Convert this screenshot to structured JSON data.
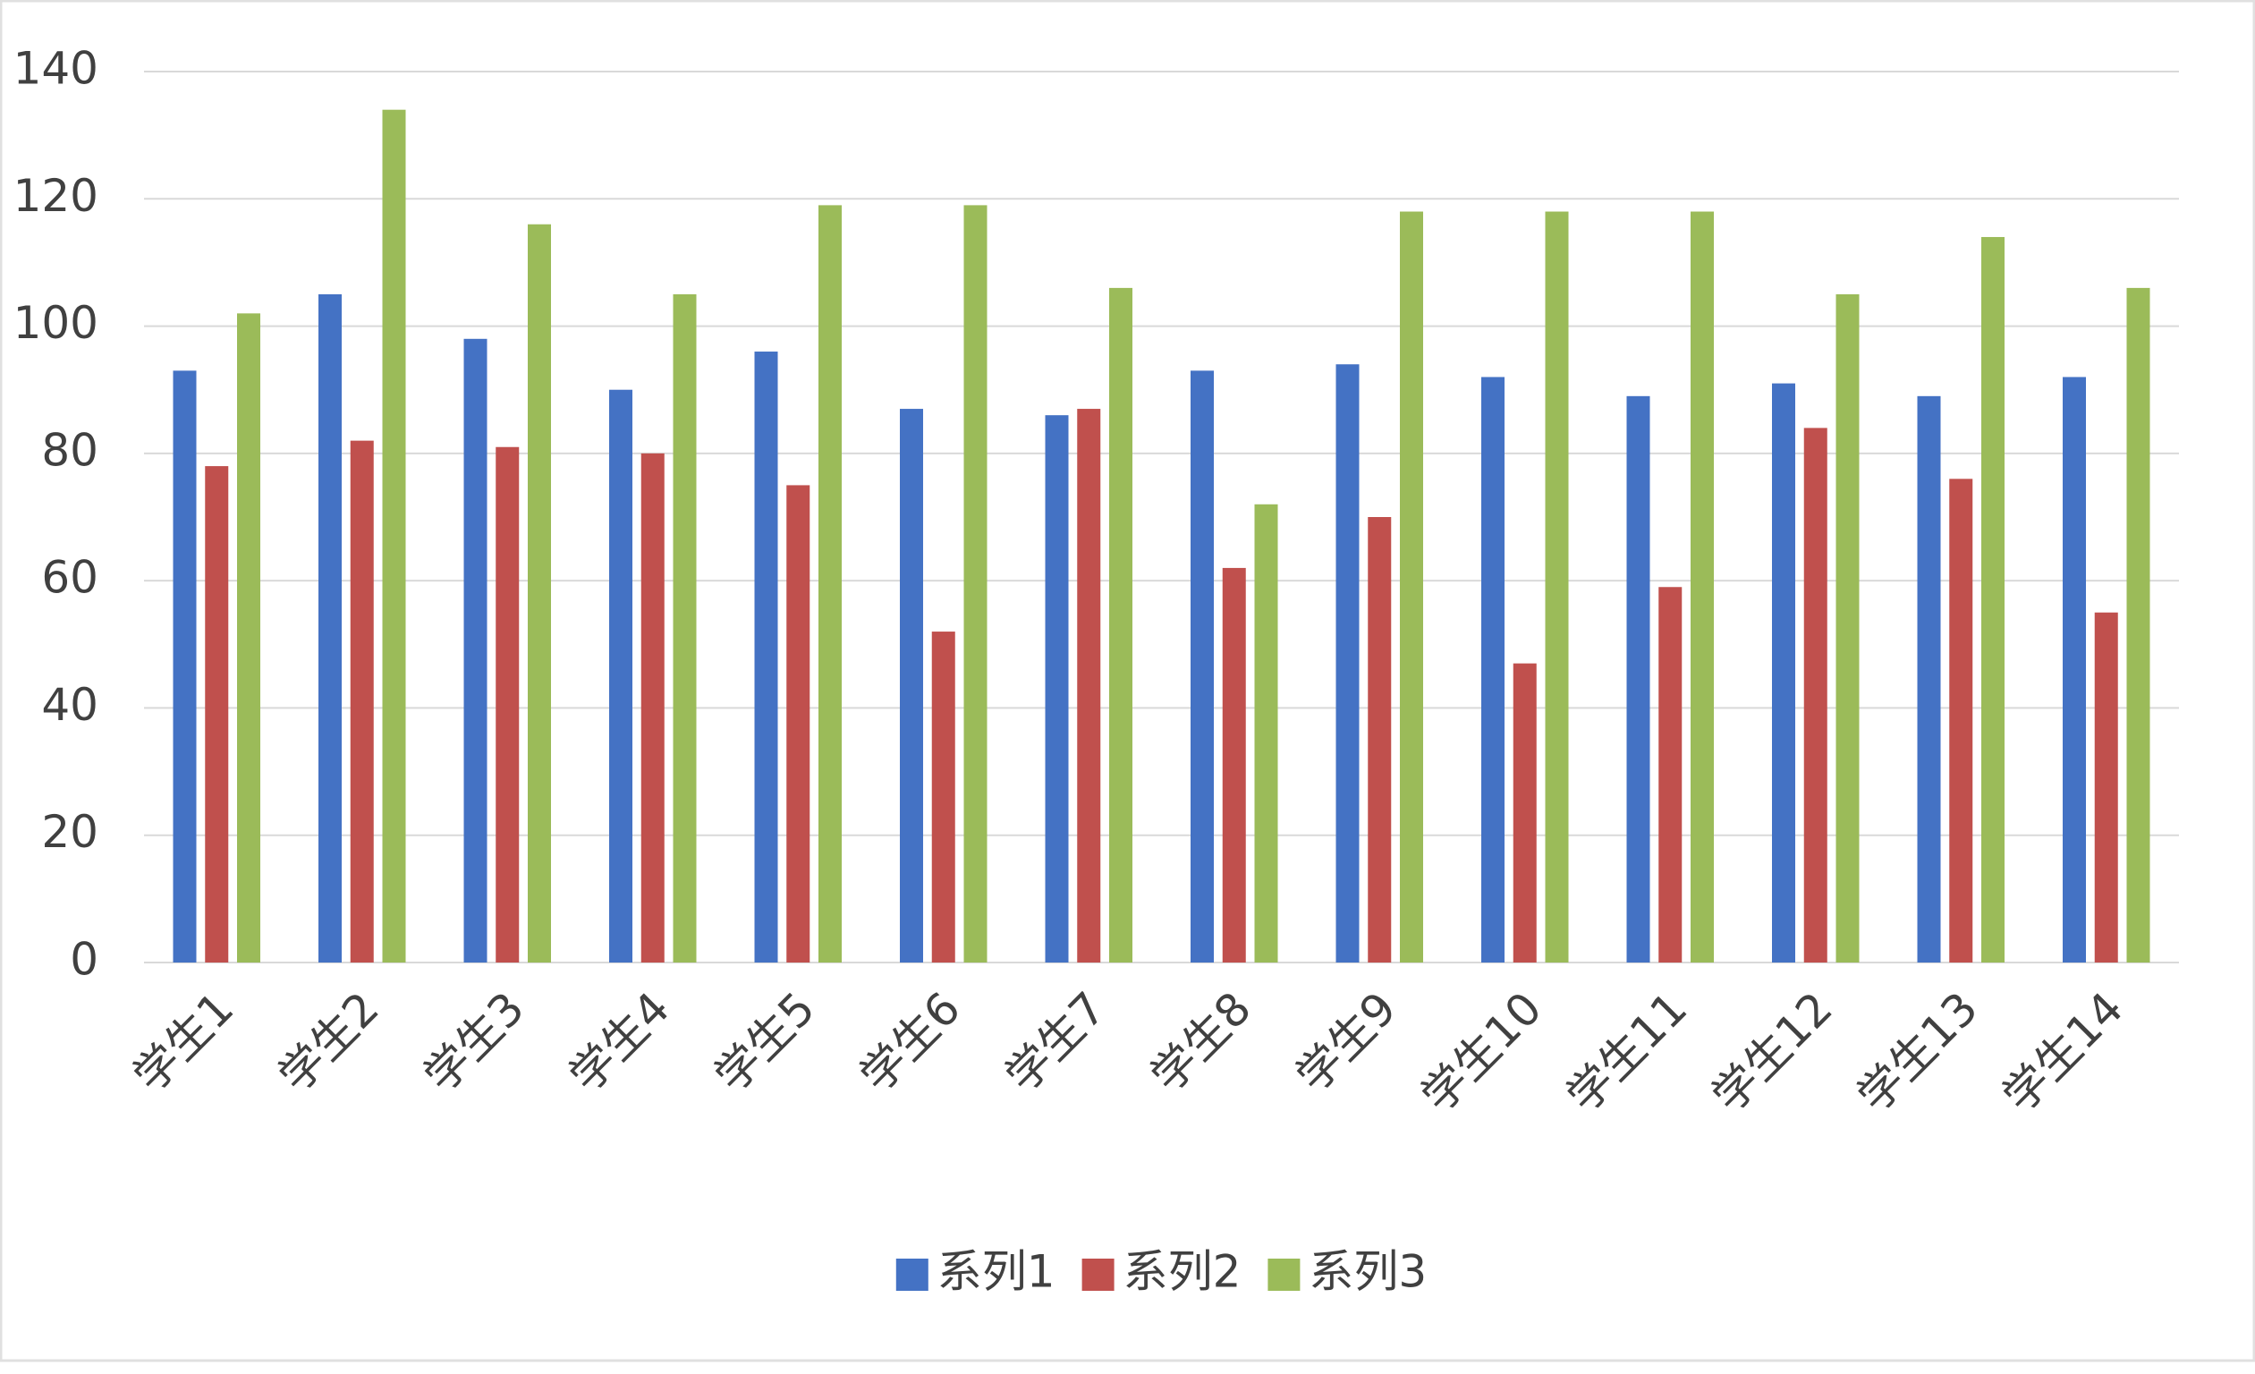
{
  "chart_data": {
    "type": "bar",
    "categories": [
      "学生1",
      "学生2",
      "学生3",
      "学生4",
      "学生5",
      "学生6",
      "学生7",
      "学生8",
      "学生9",
      "学生10",
      "学生11",
      "学生12",
      "学生13",
      "学生14"
    ],
    "series": [
      {
        "name": "系列1",
        "color": "#4472c4",
        "values": [
          93,
          105,
          98,
          90,
          96,
          87,
          86,
          93,
          94,
          92,
          89,
          91,
          89,
          92
        ]
      },
      {
        "name": "系列2",
        "color": "#c0504d",
        "values": [
          78,
          82,
          81,
          80,
          75,
          52,
          87,
          62,
          70,
          47,
          59,
          84,
          76,
          55
        ]
      },
      {
        "name": "系列3",
        "color": "#9bbb59",
        "values": [
          102,
          134,
          116,
          105,
          119,
          119,
          106,
          72,
          118,
          118,
          118,
          105,
          114,
          106
        ]
      }
    ],
    "ylim": [
      0,
      140
    ],
    "yticks": [
      0,
      20,
      40,
      60,
      80,
      100,
      120,
      140
    ],
    "grid": true,
    "legend": "bottom"
  }
}
